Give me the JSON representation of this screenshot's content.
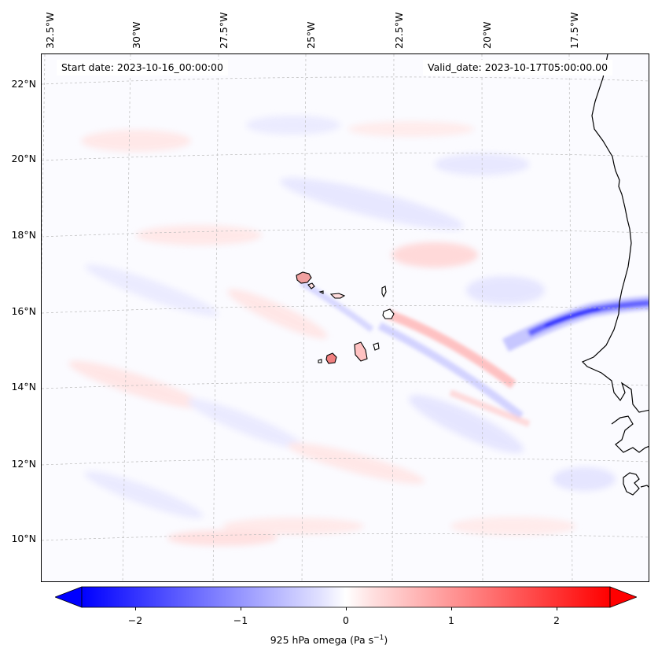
{
  "map": {
    "start_date": "Start date: 2023-10-16_00:00:00",
    "valid_date": "Valid_date: 2023-10-17T05:00:00.00",
    "lon_labels": [
      "32.5°W",
      "30°W",
      "27.5°W",
      "25°W",
      "22.5°W",
      "20°W",
      "17.5°W"
    ],
    "lat_labels": [
      "22°N",
      "20°N",
      "18°N",
      "16°N",
      "14°N",
      "12°N",
      "10°N"
    ],
    "colors": {
      "positive": "#ff0000",
      "negative": "#0000ff",
      "neutral": "#ffffff",
      "coastline": "#000000",
      "gridline": "#bbbbbb"
    }
  },
  "colorbar": {
    "label": "925 hPa omega (Pa s",
    "label_sup": "−1",
    "label_close": ")",
    "ticks": [
      "−2",
      "−1",
      "0",
      "1",
      "2"
    ],
    "tick_values": [
      -2,
      -1,
      0,
      1,
      2
    ],
    "range": [
      -2.5,
      2.5
    ]
  }
}
